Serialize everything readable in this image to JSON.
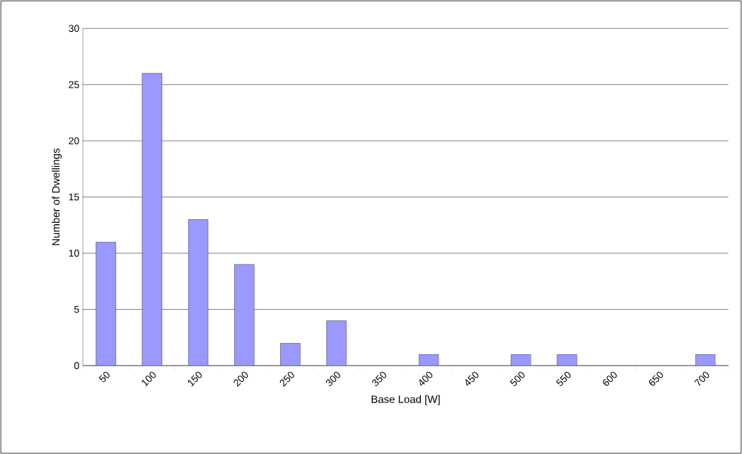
{
  "chart_data": {
    "type": "bar",
    "xlabel": "Base Load [W]",
    "ylabel": "Number of Dwellings",
    "categories": [
      "50",
      "100",
      "150",
      "200",
      "250",
      "300",
      "350",
      "400",
      "450",
      "500",
      "550",
      "600",
      "650",
      "700"
    ],
    "values": [
      11,
      26,
      13,
      9,
      2,
      4,
      0,
      1,
      0,
      1,
      1,
      0,
      0,
      1
    ],
    "color": "#9999ff",
    "ylim": [
      0,
      30
    ],
    "yticks": [
      0,
      5,
      10,
      15,
      20,
      25,
      30
    ],
    "grid": "y"
  }
}
